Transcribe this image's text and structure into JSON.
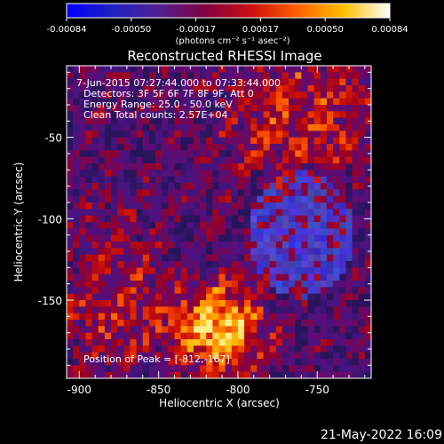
{
  "colorbar": {
    "ticks": [
      "-0.00084",
      "-0.00050",
      "-0.00017",
      "0.00017",
      "0.00050",
      "0.00084"
    ],
    "unit_label": "(photons cm⁻² s⁻¹ asec⁻²)",
    "colors": [
      "#0000ff",
      "#2020c0",
      "#502090",
      "#800040",
      "#cc1010",
      "#ff6000",
      "#ffc000",
      "#ffffff"
    ]
  },
  "chart_data": {
    "type": "heatmap",
    "title": "Reconstructed RHESSI Image",
    "xlabel": "Heliocentric X (arcsec)",
    "ylabel": "Heliocentric Y (arcsec)",
    "xlim": [
      -908,
      -716
    ],
    "ylim": [
      -198,
      -6
    ],
    "xticks": [
      -900,
      -850,
      -800,
      -750
    ],
    "yticks": [
      -50,
      -100,
      -150
    ],
    "xtick_labels": [
      "-900",
      "-850",
      "-800",
      "-750"
    ],
    "ytick_labels": [
      "-50",
      "-100",
      "-150"
    ],
    "colorbar_range": [
      -0.00084,
      0.00084
    ],
    "peak": [
      -812,
      -167
    ],
    "annotations": {
      "time": "7-Jun-2015 07:27:44.000 to 07:33:44.000",
      "detectors": "Detectors: 3F 5F 6F 7F 8F 9F, Att 0",
      "energy": "Energy Range: 25.0 - 50.0 keV",
      "clean": "Clean     Total counts: 2.57E+04",
      "peak_text": "Position of Peak = [-812,-167]"
    }
  },
  "footer": {
    "date": "21-May-2022 16:09"
  }
}
